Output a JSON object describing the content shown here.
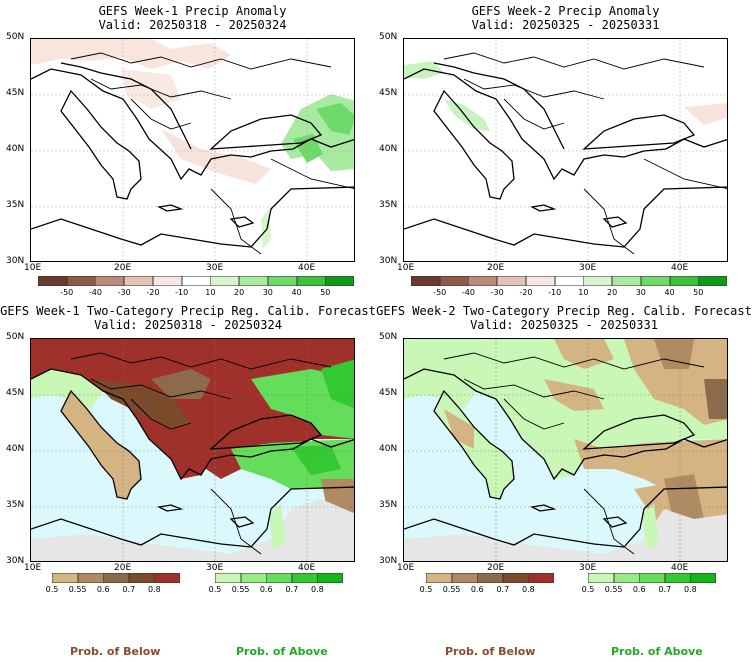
{
  "panels": [
    {
      "title1": "GEFS Week-1 Precip Anomaly",
      "title2": "Valid: 20250318 - 20250324",
      "lat_labels": [
        "50N",
        "45N",
        "40N",
        "35N",
        "30N"
      ],
      "lon_labels": [
        "10E",
        "20E",
        "30E",
        "40E"
      ]
    },
    {
      "title1": "GEFS Week-2 Precip Anomaly",
      "title2": "Valid: 20250325 - 20250331",
      "lat_labels": [
        "50N",
        "45N",
        "40N",
        "35N",
        "30N"
      ],
      "lon_labels": [
        "10E",
        "20E",
        "30E",
        "40E"
      ]
    },
    {
      "title1": "GEFS Week-1 Two-Category Precip Reg. Calib. Forecast",
      "title2": "Valid: 20250318 - 20250324",
      "lat_labels": [
        "50N",
        "45N",
        "40N",
        "35N",
        "30N"
      ],
      "lon_labels": [
        "10E",
        "20E",
        "30E",
        "40E"
      ]
    },
    {
      "title1": "GEFS Week-2 Two-Category Precip Reg. Calib. Forecast",
      "title2": "Valid: 20250325 - 20250331",
      "lat_labels": [
        "50N",
        "45N",
        "40N",
        "35N",
        "30N"
      ],
      "lon_labels": [
        "10E",
        "20E",
        "30E",
        "40E"
      ]
    }
  ],
  "anomaly_colorbar": {
    "labels": [
      "-50",
      "-40",
      "-30",
      "-20",
      "-10",
      "10",
      "20",
      "30",
      "40",
      "50"
    ],
    "colors": [
      "#6b3a2c",
      "#8c5a47",
      "#b98a77",
      "#e2c3b6",
      "#f5e8e2",
      "#ffffff",
      "#d8f5d0",
      "#a8eaa0",
      "#6fd96a",
      "#3cc23a",
      "#119a1a"
    ]
  },
  "prob_below_colorbar": {
    "labels": [
      "0.5",
      "0.55",
      "0.6",
      "0.7",
      "0.8"
    ],
    "colors": [
      "#d4b483",
      "#b08a63",
      "#8c6a4c",
      "#7a4a2a",
      "#a0302a"
    ]
  },
  "prob_above_colorbar": {
    "labels": [
      "0.5",
      "0.55",
      "0.6",
      "0.7",
      "0.8"
    ],
    "colors": [
      "#c8f7b6",
      "#96ec84",
      "#63dd5a",
      "#33c933",
      "#12b51a"
    ]
  },
  "footer": {
    "below_1": "Prob. of Below",
    "above_1": "Prob. of Above",
    "below_2": "Prob. of Below",
    "above_2": "Prob. of Above"
  },
  "colors": {
    "sea": "#dbf9fc",
    "nodata": "#e6e6e6",
    "below_text": "#8b4a2b",
    "above_text": "#22aa22"
  }
}
